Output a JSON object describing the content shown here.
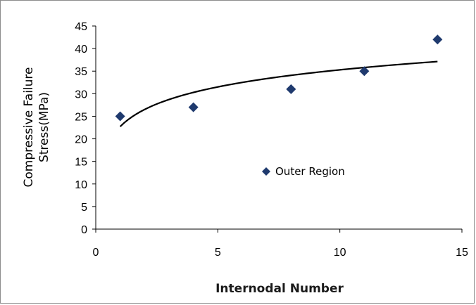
{
  "chart_data": {
    "type": "scatter",
    "title": "",
    "xlabel": "Internodal Number",
    "ylabel_lines": [
      "Compressive Failure",
      "Stress(MPa)"
    ],
    "xlim": [
      0,
      15
    ],
    "ylim": [
      0,
      45
    ],
    "x_ticks": [
      0,
      5,
      10,
      15
    ],
    "y_ticks": [
      0,
      5,
      10,
      15,
      20,
      25,
      30,
      35,
      40,
      45
    ],
    "grid": false,
    "legend_position": "center",
    "series": [
      {
        "name": "Outer Region",
        "marker": "diamond",
        "color": "#1f3a6e",
        "x": [
          1,
          4,
          8,
          11,
          14
        ],
        "y": [
          25,
          27,
          31,
          35,
          42
        ]
      }
    ],
    "trendline": {
      "kind": "logarithmic",
      "color": "#000000",
      "x_range": [
        1,
        14
      ]
    }
  }
}
